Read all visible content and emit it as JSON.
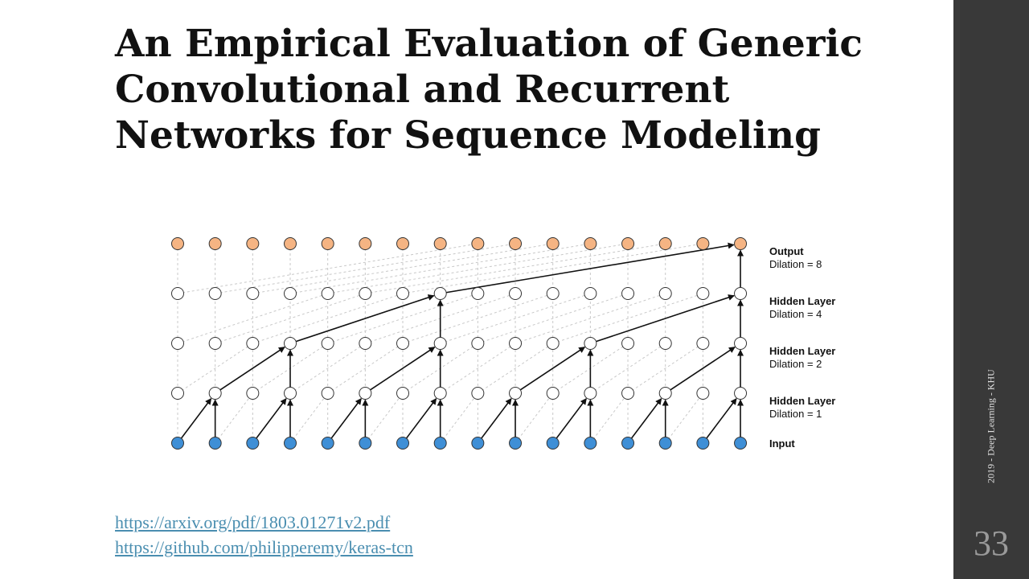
{
  "slide": {
    "title_lines": [
      "An Empirical Evaluation of Generic",
      "Convolutional and Recurrent",
      "Networks for Sequence Modeling"
    ],
    "links": [
      "https://arxiv.org/pdf/1803.01271v2.pdf",
      "https://github.com/philipperemy/keras-tcn"
    ],
    "footer": "2019 - Deep Learning - KHU",
    "page_number": "33"
  },
  "diagram": {
    "node_count": 16,
    "layers": [
      {
        "name": "Output",
        "detail": "Dilation = 8",
        "dilation": 8
      },
      {
        "name": "Hidden Layer",
        "detail": "Dilation = 4",
        "dilation": 4
      },
      {
        "name": "Hidden Layer",
        "detail": "Dilation = 2",
        "dilation": 2
      },
      {
        "name": "Hidden Layer",
        "detail": "Dilation = 1",
        "dilation": 1
      },
      {
        "name": "Input",
        "detail": ""
      }
    ],
    "colors": {
      "output": "#f5b483",
      "hidden": "#ffffff",
      "input": "#3f8fd6",
      "arrow": "#111111",
      "grid": "#c8c8c8"
    }
  }
}
